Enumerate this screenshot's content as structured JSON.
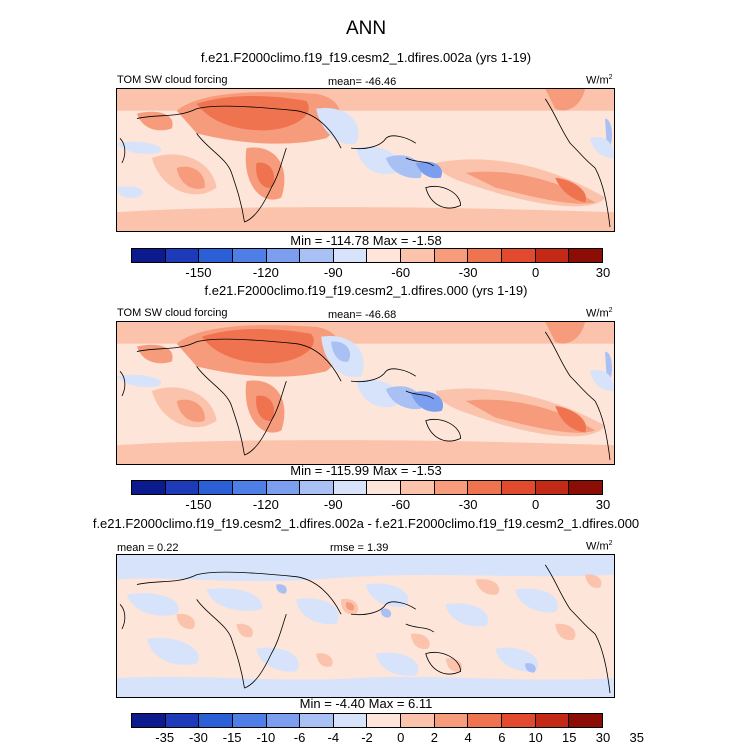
{
  "figure": {
    "title": "ANN"
  },
  "panels": [
    {
      "title": "f.e21.F2000climo.f19_f19.cesm2_1.dfires.002a (yrs 1-19)",
      "left_label": "TOM SW cloud forcing",
      "center_label": "mean= -46.46",
      "units_base": "W/m",
      "units_exp": "2",
      "minmax": "Min = -114.78 Max =  -1.58"
    },
    {
      "title": "f.e21.F2000climo.f19_f19.cesm2_1.dfires.000 (yrs 1-19)",
      "left_label": "TOM SW cloud forcing",
      "center_label": "mean= -46.68",
      "units_base": "W/m",
      "units_exp": "2",
      "minmax": "Min = -115.99 Max =  -1.53"
    },
    {
      "title": "f.e21.F2000climo.f19_f19.cesm2_1.dfires.002a - f.e21.F2000climo.f19_f19.cesm2_1.dfires.000",
      "left_label": "mean =   0.22",
      "center_label": "rmse =   1.39",
      "units_base": "W/m",
      "units_exp": "2",
      "minmax": "Min =  -4.40 Max =   6.11"
    }
  ],
  "colorbars": {
    "abs": {
      "colors": [
        "#0b1a8c",
        "#1d3bb8",
        "#2b5fd6",
        "#4f7fe6",
        "#7c9eef",
        "#a9c0f5",
        "#d6e3fb",
        "#fde5d9",
        "#fbc3ab",
        "#f69c7c",
        "#f0734f",
        "#e14a2c",
        "#c32a16",
        "#8c0d05"
      ],
      "labels": [
        "-150",
        "-120",
        "-90",
        "-60",
        "-30",
        "0",
        "30"
      ]
    },
    "diff": {
      "colors": [
        "#0b1a8c",
        "#1d3bb8",
        "#2b5fd6",
        "#4f7fe6",
        "#7c9eef",
        "#a9c0f5",
        "#d6e3fb",
        "#fde5d9",
        "#fbc3ab",
        "#f69c7c",
        "#f0734f",
        "#e14a2c",
        "#c32a16",
        "#8c0d05"
      ],
      "labels": [
        "-35",
        "-30",
        "-15",
        "-10",
        "-6",
        "-4",
        "-2",
        "0",
        "2",
        "4",
        "6",
        "10",
        "15",
        "30",
        "35"
      ]
    }
  }
}
